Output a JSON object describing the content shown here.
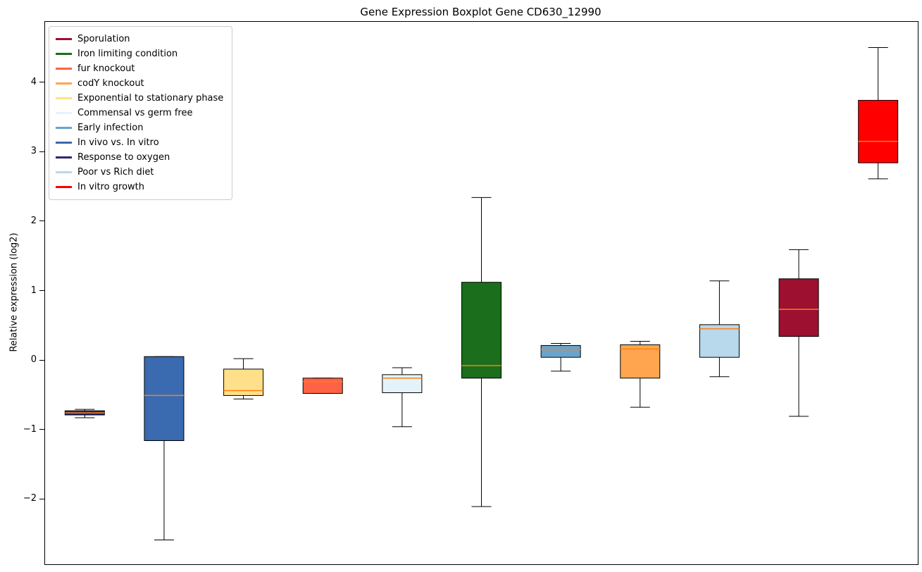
{
  "figure": {
    "title": "Gene Expression Boxplot Gene CD630_12990",
    "ylabel": "Relative expression (log2)"
  },
  "chart_data": {
    "type": "boxplot",
    "title": "Gene Expression Boxplot Gene CD630_12990",
    "xlabel": "",
    "ylabel": "Relative expression (log2)",
    "ylim": [
      -2.93,
      4.88
    ],
    "xlim": [
      0.5,
      11.5
    ],
    "grid": false,
    "legend_position": "upper left",
    "median_color": "#ff7f0e",
    "yticks": {
      "values": [
        4,
        3,
        2,
        1,
        0,
        -1,
        -2
      ],
      "labels": [
        "4",
        "3",
        "2",
        "1",
        "0",
        "−1",
        "−2"
      ]
    },
    "boxes": [
      {
        "name": "Response to oxygen",
        "color": "#2b2870",
        "position": 1,
        "whisker_low": -0.82,
        "q1": -0.78,
        "median": -0.75,
        "q3": -0.72,
        "whisker_high": -0.7
      },
      {
        "name": "In vivo vs. In vitro",
        "color": "#3a6ab0",
        "position": 2,
        "whisker_low": -2.58,
        "q1": -1.15,
        "median": -0.5,
        "q3": 0.06,
        "whisker_high": 0.06
      },
      {
        "name": "Exponential to stationary phase",
        "color": "#ffe08a",
        "position": 3,
        "whisker_low": -0.55,
        "q1": -0.5,
        "median": -0.43,
        "q3": -0.12,
        "whisker_high": 0.03
      },
      {
        "name": "fur knockout",
        "color": "#ff6347",
        "position": 4,
        "whisker_low": -0.47,
        "q1": -0.47,
        "median": -0.3,
        "q3": -0.25,
        "whisker_high": -0.25
      },
      {
        "name": "Commensal vs germ free",
        "color": "#e4f3f9",
        "position": 5,
        "whisker_low": -0.95,
        "q1": -0.46,
        "median": -0.25,
        "q3": -0.2,
        "whisker_high": -0.1
      },
      {
        "name": "Iron limiting condition",
        "color": "#1b6e1b",
        "position": 6,
        "whisker_low": -2.1,
        "q1": -0.25,
        "median": -0.07,
        "q3": 1.13,
        "whisker_high": 2.35
      },
      {
        "name": "Early infection",
        "color": "#6ba3cc",
        "position": 7,
        "whisker_low": -0.15,
        "q1": 0.05,
        "median": 0.16,
        "q3": 0.22,
        "whisker_high": 0.25
      },
      {
        "name": "codY knockout",
        "color": "#ffa54f",
        "position": 8,
        "whisker_low": -0.67,
        "q1": -0.25,
        "median": 0.17,
        "q3": 0.23,
        "whisker_high": 0.28
      },
      {
        "name": "Poor vs Rich diet",
        "color": "#b8d8ec",
        "position": 9,
        "whisker_low": -0.23,
        "q1": 0.05,
        "median": 0.46,
        "q3": 0.52,
        "whisker_high": 1.15
      },
      {
        "name": "Sporulation",
        "color": "#9e1030",
        "position": 10,
        "whisker_low": -0.8,
        "q1": 0.35,
        "median": 0.74,
        "q3": 1.18,
        "whisker_high": 1.6
      },
      {
        "name": "In vitro growth",
        "color": "#ff0000",
        "position": 11,
        "whisker_low": 2.62,
        "q1": 2.85,
        "median": 3.16,
        "q3": 3.75,
        "whisker_high": 4.51
      }
    ],
    "legend": [
      {
        "label": "Sporulation",
        "color": "#9e1030"
      },
      {
        "label": "Iron limiting condition",
        "color": "#1b6e1b"
      },
      {
        "label": "fur knockout",
        "color": "#ff6347"
      },
      {
        "label": "codY knockout",
        "color": "#ffa54f"
      },
      {
        "label": "Exponential to stationary phase",
        "color": "#ffe08a"
      },
      {
        "label": "Commensal vs germ free",
        "color": "#e4f3f9"
      },
      {
        "label": "Early infection",
        "color": "#6ba3cc"
      },
      {
        "label": "In vivo vs. In vitro",
        "color": "#3a6ab0"
      },
      {
        "label": "Response to oxygen",
        "color": "#2b2870"
      },
      {
        "label": "Poor vs Rich diet",
        "color": "#b8d8ec"
      },
      {
        "label": "In vitro growth",
        "color": "#ff0000"
      }
    ]
  }
}
